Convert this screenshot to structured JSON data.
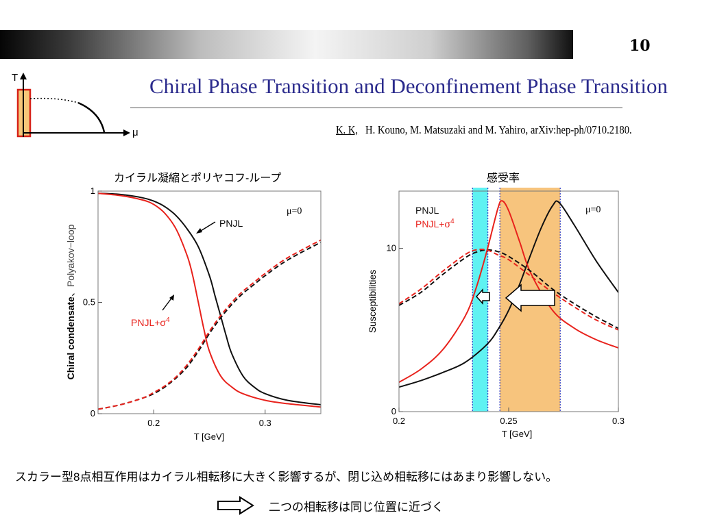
{
  "slide": {
    "page_number": "10",
    "title": "Chiral Phase Transition and Deconfinement Phase Transition",
    "reference": {
      "lead": "K. K,",
      "rest": "H. Kouno, M. Matsuzaki  and  M. Yahiro, arXiv:hep-ph/0710.2180."
    },
    "note": "スカラー型8点相互作用はカイラル相転移に大きく影響するが、閉じ込め相転移にはあまり影響しない。",
    "conclusion": "二つの相転移は同じ位置に近づく",
    "colors": {
      "title": "#2a2a8c",
      "pnjl": "#111111",
      "pnjl_sigma4": "#e8221c",
      "cyan_band": "#5ff2f2",
      "orange_band": "#f7c47d"
    }
  },
  "phase_icon": {
    "t_label": "T",
    "mu_label": "μ"
  },
  "chart_data": [
    {
      "type": "line",
      "title": "カイラル凝縮とポリヤコフ-ループ",
      "xlabel": "T [GeV]",
      "ylabel_chiral": "Chiral condensate",
      "ylabel_separator": "、",
      "ylabel_polyakov": "Polyakov−loop",
      "xlim": [
        0.15,
        0.35
      ],
      "ylim": [
        0,
        1
      ],
      "xticks": [
        0.2,
        0.3
      ],
      "yticks": [
        0,
        0.5,
        1
      ],
      "xtick_labels": [
        "0.2",
        "0.3"
      ],
      "ytick_labels": [
        "0",
        "0.5",
        "1"
      ],
      "grid": false,
      "annotation_mu": "μ=0",
      "label_pnjl": "PNJL",
      "label_pnjl_sigma4": "PNJL+σ",
      "label_pnjl_sigma4_sup": "4",
      "series": [
        {
          "name": "PNJL",
          "color": "#111111",
          "dash": false,
          "x": [
            0.15,
            0.17,
            0.19,
            0.2,
            0.21,
            0.22,
            0.23,
            0.24,
            0.25,
            0.255,
            0.26,
            0.265,
            0.27,
            0.28,
            0.29,
            0.3,
            0.32,
            0.35
          ],
          "y": [
            0.99,
            0.985,
            0.97,
            0.955,
            0.93,
            0.89,
            0.83,
            0.75,
            0.62,
            0.53,
            0.44,
            0.35,
            0.27,
            0.17,
            0.12,
            0.09,
            0.06,
            0.04
          ]
        },
        {
          "name": "PNJL+σ4",
          "color": "#e8221c",
          "dash": false,
          "x": [
            0.15,
            0.17,
            0.19,
            0.2,
            0.21,
            0.22,
            0.23,
            0.235,
            0.24,
            0.245,
            0.25,
            0.26,
            0.27,
            0.28,
            0.3,
            0.32,
            0.35
          ],
          "y": [
            0.99,
            0.98,
            0.96,
            0.94,
            0.9,
            0.83,
            0.71,
            0.62,
            0.5,
            0.38,
            0.28,
            0.17,
            0.12,
            0.09,
            0.06,
            0.045,
            0.03
          ]
        },
        {
          "name": "",
          "color": "#111111",
          "dash": true,
          "x": [
            0.15,
            0.17,
            0.19,
            0.2,
            0.21,
            0.22,
            0.23,
            0.24,
            0.25,
            0.26,
            0.27,
            0.28,
            0.29,
            0.3,
            0.32,
            0.35
          ],
          "y": [
            0.02,
            0.04,
            0.07,
            0.09,
            0.12,
            0.16,
            0.21,
            0.28,
            0.36,
            0.43,
            0.49,
            0.54,
            0.58,
            0.62,
            0.69,
            0.77
          ]
        },
        {
          "name": "",
          "color": "#e8221c",
          "dash": true,
          "x": [
            0.15,
            0.17,
            0.19,
            0.2,
            0.21,
            0.22,
            0.23,
            0.24,
            0.25,
            0.26,
            0.27,
            0.28,
            0.29,
            0.3,
            0.32,
            0.35
          ],
          "y": [
            0.02,
            0.04,
            0.07,
            0.095,
            0.125,
            0.165,
            0.22,
            0.29,
            0.37,
            0.44,
            0.5,
            0.55,
            0.59,
            0.63,
            0.7,
            0.78
          ]
        }
      ]
    },
    {
      "type": "line",
      "title": "感受率",
      "xlabel": "T [GeV]",
      "ylabel": "Susceptibilities",
      "xlim": [
        0.2,
        0.3
      ],
      "ylim": [
        0,
        13.5
      ],
      "xticks": [
        0.2,
        0.25,
        0.3
      ],
      "yticks": [
        0,
        10
      ],
      "xtick_labels": [
        "0.2",
        "0.25",
        "0.3"
      ],
      "ytick_labels": [
        "0",
        "10"
      ],
      "grid": false,
      "annotation_mu": "μ=0",
      "legend": {
        "placement": "top-left",
        "entries": [
          "PNJL",
          "PNJL+σ"
        ],
        "sup": "4"
      },
      "bands": [
        {
          "color": "#5ff2f2",
          "x0": 0.2335,
          "x1": 0.2405
        },
        {
          "color": "#f7c47d",
          "x0": 0.246,
          "x1": 0.2735
        }
      ],
      "series": [
        {
          "name": "PNJL",
          "color": "#111111",
          "dash": false,
          "x": [
            0.2,
            0.21,
            0.22,
            0.23,
            0.24,
            0.245,
            0.25,
            0.255,
            0.26,
            0.265,
            0.27,
            0.273,
            0.28,
            0.29,
            0.3
          ],
          "y": [
            1.5,
            1.9,
            2.4,
            3.0,
            4.1,
            5.0,
            6.2,
            7.8,
            9.6,
            11.3,
            12.6,
            12.8,
            11.4,
            9.2,
            7.3
          ]
        },
        {
          "name": "PNJL+σ4",
          "color": "#e8221c",
          "dash": false,
          "x": [
            0.2,
            0.21,
            0.22,
            0.23,
            0.235,
            0.24,
            0.245,
            0.247,
            0.25,
            0.255,
            0.26,
            0.27,
            0.28,
            0.29,
            0.3
          ],
          "y": [
            1.8,
            2.6,
            3.8,
            5.8,
            7.5,
            9.8,
            12.4,
            12.9,
            12.3,
            10.4,
            8.5,
            6.2,
            5.1,
            4.4,
            3.9
          ]
        },
        {
          "name": "",
          "color": "#111111",
          "dash": true,
          "x": [
            0.2,
            0.21,
            0.22,
            0.23,
            0.235,
            0.24,
            0.245,
            0.25,
            0.26,
            0.27,
            0.28,
            0.29,
            0.3
          ],
          "y": [
            6.5,
            7.3,
            8.4,
            9.4,
            9.75,
            9.9,
            9.8,
            9.5,
            8.6,
            7.5,
            6.6,
            5.8,
            5.1
          ]
        },
        {
          "name": "",
          "color": "#e8221c",
          "dash": true,
          "x": [
            0.2,
            0.21,
            0.22,
            0.23,
            0.235,
            0.24,
            0.245,
            0.25,
            0.26,
            0.27,
            0.28,
            0.29,
            0.3
          ],
          "y": [
            6.6,
            7.5,
            8.6,
            9.6,
            9.9,
            9.9,
            9.6,
            9.3,
            8.3,
            7.3,
            6.4,
            5.6,
            5.0
          ]
        }
      ]
    }
  ]
}
